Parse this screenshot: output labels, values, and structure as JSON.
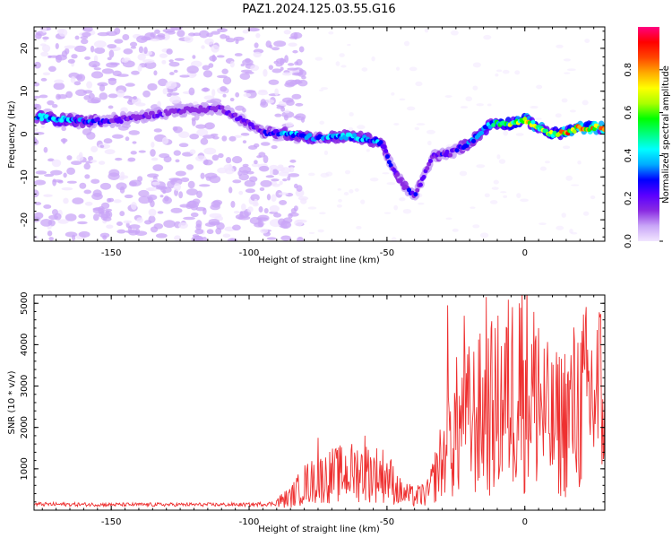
{
  "title": "PAZ1.2024.125.03.55.G16",
  "chart_data": [
    {
      "type": "heatmap",
      "xlabel": "Height of straight line (km)",
      "ylabel": "Frequency (Hz)",
      "xlim": [
        -178,
        29
      ],
      "ylim": [
        -25,
        25
      ],
      "xticks": [
        -150,
        -100,
        -50,
        0
      ],
      "yticks": [
        -20,
        -10,
        0,
        10,
        20
      ],
      "colorbar": {
        "label": "Normalized spectral amplitude",
        "ticks": [
          0.0,
          0.2,
          0.4,
          0.6,
          0.8
        ],
        "range": [
          0,
          1
        ],
        "colormap": [
          "#f2e6ff",
          "#c9a6f7",
          "#8a2be2",
          "#5a00ff",
          "#0000ff",
          "#00aaff",
          "#00ffff",
          "#00ff7f",
          "#00ff00",
          "#aaff00",
          "#ffff00",
          "#ffaa00",
          "#ff4500",
          "#ff0000",
          "#ff0080"
        ]
      },
      "ridge": [
        {
          "x": -176,
          "f": 4.0,
          "a": 0.35
        },
        {
          "x": -170,
          "f": 3.5,
          "a": 0.4
        },
        {
          "x": -160,
          "f": 3.0,
          "a": 0.3
        },
        {
          "x": -150,
          "f": 3.0,
          "a": 0.2
        },
        {
          "x": -140,
          "f": 4.0,
          "a": 0.15
        },
        {
          "x": -125,
          "f": 5.5,
          "a": 0.15
        },
        {
          "x": -110,
          "f": 6.0,
          "a": 0.15
        },
        {
          "x": -95,
          "f": 0.5,
          "a": 0.2
        },
        {
          "x": -85,
          "f": 0.0,
          "a": 0.35
        },
        {
          "x": -75,
          "f": -1.0,
          "a": 0.3
        },
        {
          "x": -65,
          "f": -0.5,
          "a": 0.35
        },
        {
          "x": -58,
          "f": -1.0,
          "a": 0.35
        },
        {
          "x": -52,
          "f": -2.0,
          "a": 0.3
        },
        {
          "x": -48,
          "f": -8.0,
          "a": 0.2
        },
        {
          "x": -44,
          "f": -12.0,
          "a": 0.2
        },
        {
          "x": -40,
          "f": -14.5,
          "a": 0.2
        },
        {
          "x": -33,
          "f": -5.0,
          "a": 0.2
        },
        {
          "x": -27,
          "f": -4.5,
          "a": 0.2
        },
        {
          "x": -20,
          "f": -2.0,
          "a": 0.3
        },
        {
          "x": -12,
          "f": 2.5,
          "a": 0.4
        },
        {
          "x": -5,
          "f": 2.5,
          "a": 0.55
        },
        {
          "x": 0,
          "f": 3.5,
          "a": 0.6
        },
        {
          "x": 5,
          "f": 1.5,
          "a": 0.55
        },
        {
          "x": 10,
          "f": 0.0,
          "a": 0.6
        },
        {
          "x": 15,
          "f": 0.5,
          "a": 0.7
        },
        {
          "x": 20,
          "f": 1.5,
          "a": 0.75
        },
        {
          "x": 28,
          "f": 1.5,
          "a": 0.7
        }
      ]
    },
    {
      "type": "line",
      "xlabel": "Height of straight line (km)",
      "ylabel": "SNR (10 * v/v)",
      "xlim": [
        -178,
        29
      ],
      "ylim": [
        0,
        5200
      ],
      "xticks": [
        -150,
        -100,
        -50,
        0
      ],
      "yticks": [
        1000,
        2000,
        3000,
        4000,
        5000
      ],
      "color": "#ee3030",
      "envelope": [
        {
          "x": -178,
          "y": 160
        },
        {
          "x": -150,
          "y": 150
        },
        {
          "x": -120,
          "y": 150
        },
        {
          "x": -100,
          "y": 150
        },
        {
          "x": -90,
          "y": 180
        },
        {
          "x": -85,
          "y": 300
        },
        {
          "x": -80,
          "y": 600
        },
        {
          "x": -70,
          "y": 800
        },
        {
          "x": -60,
          "y": 900
        },
        {
          "x": -50,
          "y": 800
        },
        {
          "x": -45,
          "y": 400
        },
        {
          "x": -40,
          "y": 300
        },
        {
          "x": -35,
          "y": 400
        },
        {
          "x": -30,
          "y": 1200
        },
        {
          "x": -25,
          "y": 2200
        },
        {
          "x": -20,
          "y": 2400
        },
        {
          "x": -15,
          "y": 2600
        },
        {
          "x": -10,
          "y": 2800
        },
        {
          "x": -5,
          "y": 3200
        },
        {
          "x": 0,
          "y": 3600
        },
        {
          "x": 5,
          "y": 2800
        },
        {
          "x": 10,
          "y": 2200
        },
        {
          "x": 15,
          "y": 2500
        },
        {
          "x": 20,
          "y": 2900
        },
        {
          "x": 29,
          "y": 3200
        }
      ],
      "peaks": [
        {
          "x": -28,
          "y": 4950
        },
        {
          "x": -22,
          "y": 4700
        },
        {
          "x": -14,
          "y": 5150
        },
        {
          "x": -2,
          "y": 5000
        },
        {
          "x": 5,
          "y": 4400
        },
        {
          "x": -75,
          "y": 1750
        },
        {
          "x": -58,
          "y": 1800
        }
      ]
    }
  ]
}
